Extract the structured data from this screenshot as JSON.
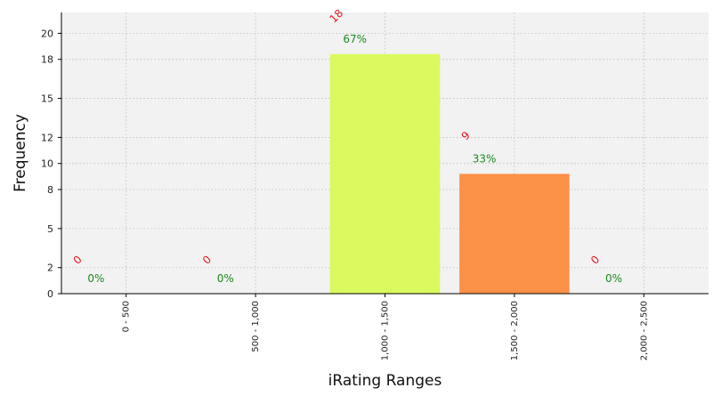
{
  "chart_data": {
    "type": "bar",
    "xlabel": "iRating Ranges",
    "ylabel": "Frequency",
    "categories": [
      "0 - 500",
      "500 - 1,000",
      "1,000 - 1,500",
      "1,500 - 2,000",
      "2,000 - 2,500"
    ],
    "values": [
      0,
      0,
      18.4,
      9.2,
      0
    ],
    "count_labels": [
      "0",
      "0",
      "18",
      "9",
      "0"
    ],
    "percent_labels": [
      "0%",
      "0%",
      "67%",
      "33%",
      "0%"
    ],
    "yticks": [
      0,
      2,
      5,
      8,
      10,
      12,
      15,
      18,
      20
    ],
    "ylim": [
      0,
      21.6
    ],
    "grid": true,
    "colors": {
      "background": "#f2f2f2",
      "bars": [
        "#d9f95e",
        "#d9f95e",
        "#d9f95e",
        "#fb9147",
        "#fb9147"
      ],
      "count_label": "#e8141e",
      "percent_label": "#1a8a1a",
      "grid": "#c8c8c8"
    }
  }
}
